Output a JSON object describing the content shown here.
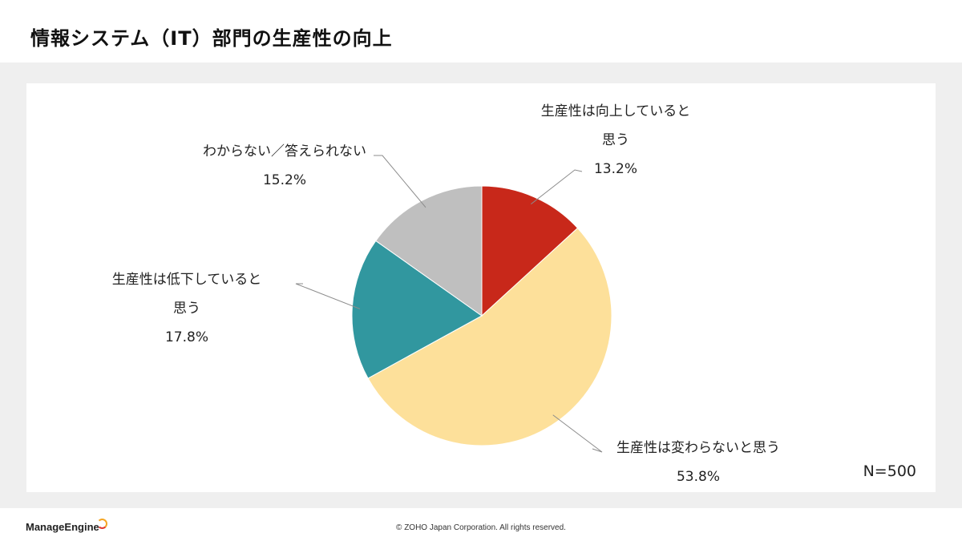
{
  "header": {
    "title": "情報システム（IT）部門の生産性の向上"
  },
  "chart_data": {
    "type": "pie",
    "title": "",
    "note": "N=500",
    "slices": [
      {
        "label_lines": [
          "生産性は向上していると",
          "思う"
        ],
        "value": 13.2,
        "value_label": "13.2%",
        "color": "#c8281a"
      },
      {
        "label_lines": [
          "生産性は変わらないと思う"
        ],
        "value": 53.8,
        "value_label": "53.8%",
        "color": "#fde09a"
      },
      {
        "label_lines": [
          "生産性は低下していると",
          "思う"
        ],
        "value": 17.8,
        "value_label": "17.8%",
        "color": "#31979f"
      },
      {
        "label_lines": [
          "わからない／答えられない"
        ],
        "value": 15.2,
        "value_label": "15.2%",
        "color": "#bfbfbf"
      }
    ]
  },
  "footer": {
    "logo": "ManageEngine",
    "copyright": "© ZOHO Japan Corporation. All rights reserved."
  }
}
